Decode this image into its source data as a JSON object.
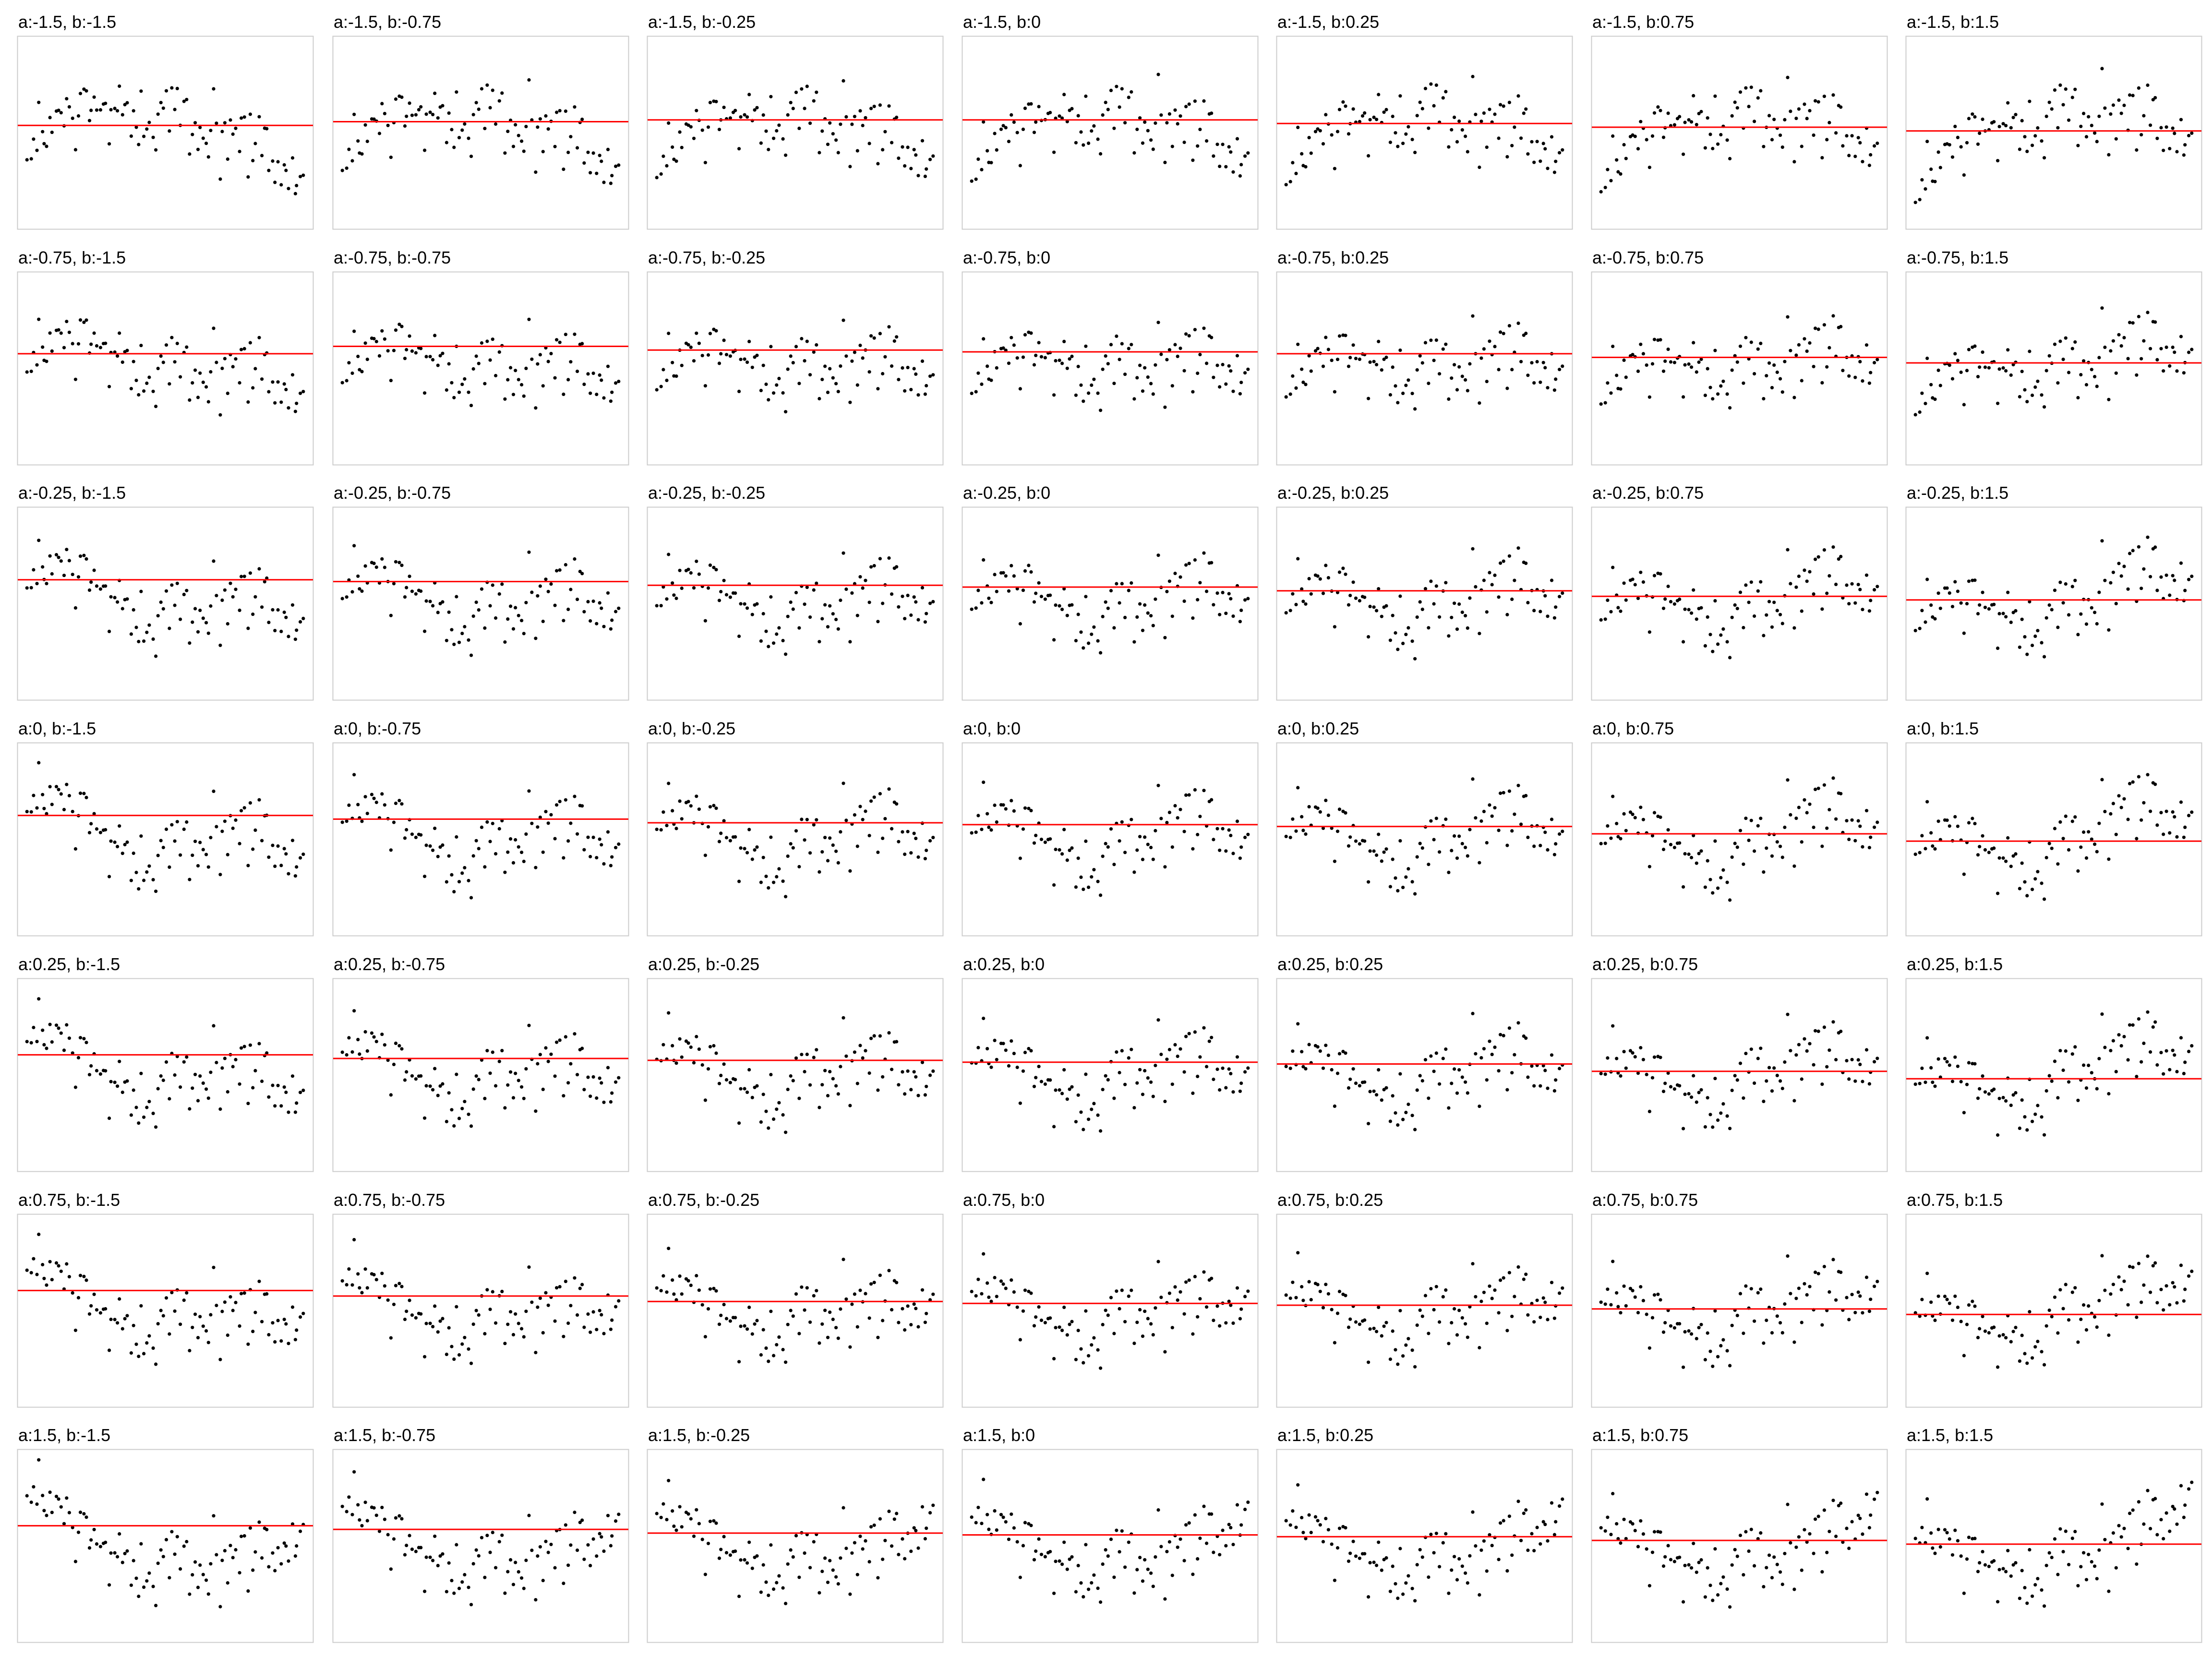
{
  "chart_data": {
    "type": "scatter",
    "layout": "small-multiples grid",
    "grid_rows": 7,
    "grid_cols": 7,
    "row_param": "a",
    "col_param": "b",
    "a_values": [
      -1.5,
      -0.75,
      -0.25,
      0,
      0.25,
      0.75,
      1.5
    ],
    "b_values": [
      -1.5,
      -0.75,
      -0.25,
      0,
      0.25,
      0.75,
      1.5
    ],
    "panel_titles": [
      [
        "a:-1.5, b:-1.5",
        "a:-1.5, b:-0.75",
        "a:-1.5, b:-0.25",
        "a:-1.5, b:0",
        "a:-1.5, b:0.25",
        "a:-1.5, b:0.75",
        "a:-1.5, b:1.5"
      ],
      [
        "a:-0.75, b:-1.5",
        "a:-0.75, b:-0.75",
        "a:-0.75, b:-0.25",
        "a:-0.75, b:0",
        "a:-0.75, b:0.25",
        "a:-0.75, b:0.75",
        "a:-0.75, b:1.5"
      ],
      [
        "a:-0.25, b:-1.5",
        "a:-0.25, b:-0.75",
        "a:-0.25, b:-0.25",
        "a:-0.25, b:0",
        "a:-0.25, b:0.25",
        "a:-0.25, b:0.75",
        "a:-0.25, b:1.5"
      ],
      [
        "a:0, b:-1.5",
        "a:0, b:-0.75",
        "a:0, b:-0.25",
        "a:0, b:0",
        "a:0, b:0.25",
        "a:0, b:0.75",
        "a:0, b:1.5"
      ],
      [
        "a:0.25, b:-1.5",
        "a:0.25, b:-0.75",
        "a:0.25, b:-0.25",
        "a:0.25, b:0",
        "a:0.25, b:0.25",
        "a:0.25, b:0.75",
        "a:0.25, b:1.5"
      ],
      [
        "a:0.75, b:-1.5",
        "a:0.75, b:-0.75",
        "a:0.75, b:-0.25",
        "a:0.75, b:0",
        "a:0.75, b:0.25",
        "a:0.75, b:0.75",
        "a:0.75, b:1.5"
      ],
      [
        "a:1.5, b:-1.5",
        "a:1.5, b:-0.75",
        "a:1.5, b:-0.25",
        "a:1.5, b:0",
        "a:1.5, b:0.25",
        "a:1.5, b:0.75",
        "a:1.5, b:1.5"
      ]
    ],
    "points_per_panel": 100,
    "x_range": [
      0,
      1
    ],
    "y_range": [
      0,
      1
    ],
    "axes_visible": false,
    "tick_labels": false,
    "point_color": "#000000",
    "reference_line": {
      "type": "horizontal",
      "color": "#ff0000",
      "levels": [
        [
          0.54,
          0.56,
          0.57,
          0.57,
          0.55,
          0.53,
          0.51
        ],
        [
          0.58,
          0.62,
          0.6,
          0.59,
          0.58,
          0.56,
          0.53
        ],
        [
          0.63,
          0.62,
          0.6,
          0.59,
          0.57,
          0.54,
          0.52
        ],
        [
          0.63,
          0.61,
          0.59,
          0.58,
          0.57,
          0.53,
          0.49
        ],
        [
          0.61,
          0.59,
          0.58,
          0.57,
          0.56,
          0.52,
          0.48
        ],
        [
          0.61,
          0.58,
          0.55,
          0.54,
          0.53,
          0.51,
          0.48
        ],
        [
          0.61,
          0.59,
          0.57,
          0.56,
          0.55,
          0.53,
          0.51
        ]
      ]
    },
    "frame_color": "#cccccc"
  }
}
